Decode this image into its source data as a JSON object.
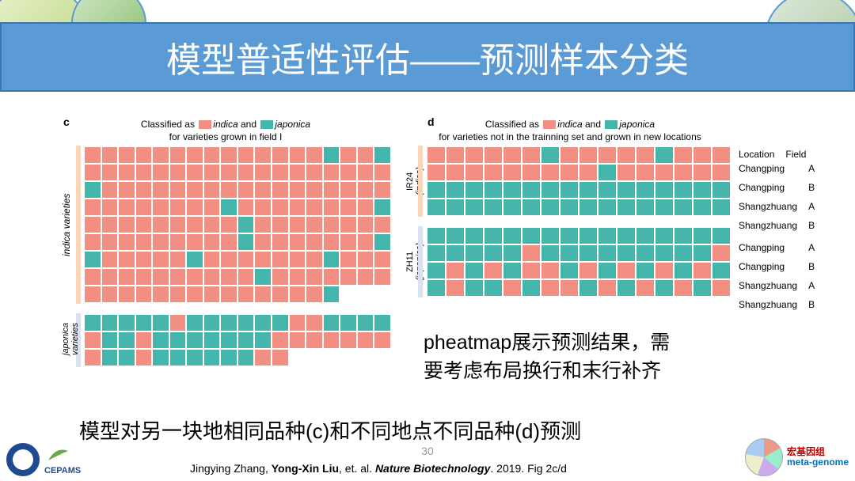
{
  "colors": {
    "indica": "#f28e82",
    "japonica": "#46b5ab",
    "title_bg": "#5b9bd5",
    "grid_gap": "#ffffff"
  },
  "title": "模型普适性评估——预测样本分类",
  "legend": {
    "prefix": "Classified as",
    "indica_label": "indica",
    "and": "and",
    "japonica_label": "japonica",
    "c_sub": "for varieties grown in field I",
    "d_sub": "for varieties not in the trainning set and grown in new locations"
  },
  "panel_c": {
    "letter": "c",
    "label_indica": "indica varieties",
    "label_japonica": "japonica\nvarieties",
    "cols": 18,
    "indica_rows": 9,
    "indica_lastrow_cols": 15,
    "indica_japonica_cells": [
      [
        0,
        14
      ],
      [
        0,
        17
      ],
      [
        2,
        0
      ],
      [
        3,
        8
      ],
      [
        3,
        17
      ],
      [
        4,
        9
      ],
      [
        5,
        9
      ],
      [
        5,
        17
      ],
      [
        6,
        0
      ],
      [
        6,
        6
      ],
      [
        6,
        14
      ],
      [
        7,
        10
      ],
      [
        8,
        14
      ]
    ],
    "japonica_rows": 3,
    "japonica_lastrow_cols": 12,
    "japonica_indica_cells": [
      [
        0,
        5
      ],
      [
        0,
        12
      ],
      [
        0,
        13
      ],
      [
        1,
        0
      ],
      [
        1,
        3
      ],
      [
        1,
        11
      ],
      [
        1,
        12
      ],
      [
        1,
        13
      ],
      [
        1,
        14
      ],
      [
        1,
        15
      ],
      [
        1,
        16
      ],
      [
        1,
        17
      ],
      [
        2,
        0
      ],
      [
        2,
        3
      ],
      [
        2,
        10
      ],
      [
        2,
        11
      ]
    ]
  },
  "panel_d": {
    "letter": "d",
    "cols": 16,
    "groups": [
      {
        "name": "IR24",
        "sub": "(indica)",
        "rows": 4,
        "japonica_cells": [
          [
            0,
            6
          ],
          [
            0,
            12
          ],
          [
            1,
            9
          ],
          [
            2,
            0
          ],
          [
            2,
            1
          ],
          [
            2,
            2
          ],
          [
            2,
            3
          ],
          [
            2,
            4
          ],
          [
            2,
            5
          ],
          [
            2,
            6
          ],
          [
            2,
            7
          ],
          [
            2,
            8
          ],
          [
            2,
            9
          ],
          [
            2,
            10
          ],
          [
            2,
            11
          ],
          [
            2,
            12
          ],
          [
            2,
            13
          ],
          [
            2,
            14
          ],
          [
            2,
            15
          ],
          [
            3,
            0
          ],
          [
            3,
            1
          ],
          [
            3,
            2
          ],
          [
            3,
            3
          ],
          [
            3,
            4
          ],
          [
            3,
            5
          ],
          [
            3,
            6
          ],
          [
            3,
            7
          ],
          [
            3,
            8
          ],
          [
            3,
            9
          ],
          [
            3,
            10
          ],
          [
            3,
            11
          ],
          [
            3,
            12
          ],
          [
            3,
            13
          ],
          [
            3,
            14
          ],
          [
            3,
            15
          ]
        ]
      },
      {
        "name": "ZH11",
        "sub": "(japonica)",
        "rows": 4,
        "japonica_cells": [
          [
            0,
            0
          ],
          [
            0,
            1
          ],
          [
            0,
            2
          ],
          [
            0,
            3
          ],
          [
            0,
            4
          ],
          [
            0,
            5
          ],
          [
            0,
            6
          ],
          [
            0,
            7
          ],
          [
            0,
            8
          ],
          [
            0,
            9
          ],
          [
            0,
            10
          ],
          [
            0,
            11
          ],
          [
            0,
            12
          ],
          [
            0,
            13
          ],
          [
            0,
            14
          ],
          [
            0,
            15
          ],
          [
            1,
            0
          ],
          [
            1,
            1
          ],
          [
            1,
            2
          ],
          [
            1,
            3
          ],
          [
            1,
            4
          ],
          [
            1,
            6
          ],
          [
            1,
            7
          ],
          [
            1,
            8
          ],
          [
            1,
            9
          ],
          [
            1,
            10
          ],
          [
            1,
            11
          ],
          [
            1,
            12
          ],
          [
            1,
            13
          ],
          [
            1,
            14
          ],
          [
            2,
            0
          ],
          [
            2,
            2
          ],
          [
            2,
            4
          ],
          [
            2,
            7
          ],
          [
            2,
            9
          ],
          [
            2,
            11
          ],
          [
            2,
            13
          ],
          [
            2,
            15
          ],
          [
            3,
            0
          ],
          [
            3,
            2
          ],
          [
            3,
            3
          ],
          [
            3,
            5
          ],
          [
            3,
            8
          ],
          [
            3,
            10
          ],
          [
            3,
            12
          ],
          [
            3,
            14
          ]
        ]
      }
    ],
    "loc_header_loc": "Location",
    "loc_header_field": "Field",
    "locfields": [
      [
        "Changping",
        "A"
      ],
      [
        "Changping",
        "B"
      ],
      [
        "Shangzhuang",
        "A"
      ],
      [
        "Shangzhuang",
        "B"
      ]
    ]
  },
  "annotation1_l1": "pheatmap展示预测结果，需",
  "annotation1_l2": "要考虑布局换行和末行补齐",
  "annotation2": "模型对另一块地相同品种(c)和不同地点不同品种(d)预测",
  "page_number": "30",
  "citation": {
    "pre": "Jingying Zhang, ",
    "bold": "Yong-Xin Liu",
    "mid": ", et. al. ",
    "journal": "Nature Biotechnology",
    "post": ". 2019. Fig 2c/d"
  },
  "meta_cn": "宏基因组",
  "meta_en": "meta-genome",
  "cepams": "CEPAMS"
}
